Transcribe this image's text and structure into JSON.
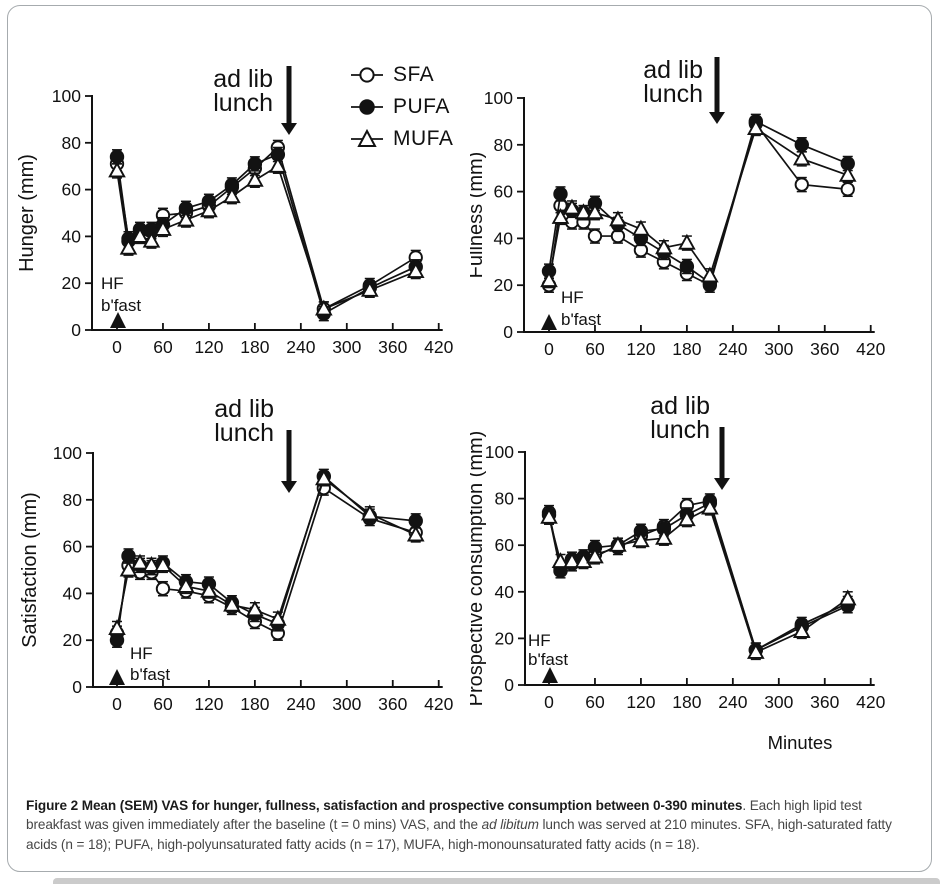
{
  "figure": {
    "caption": {
      "bold": "Figure 2 Mean (SEM) VAS for hunger, fullness, satisfaction and prospective consumption between 0-390 minutes",
      "text_1": ". Each high lipid test breakfast was given immediately after the baseline (t = 0 mins) VAS, and the ",
      "italic": "ad libitum",
      "text_2": " lunch was served at 210 minutes. SFA, high-saturated fatty acids (n = 18); PUFA, high-polyunsaturated fatty acids (n = 17), MUFA, high-monounsaturated fatty acids (n = 18)."
    },
    "x_axis_label": "Minutes"
  },
  "legend": {
    "items": [
      {
        "label": "SFA",
        "marker": "open-circle"
      },
      {
        "label": "PUFA",
        "marker": "filled-circle"
      },
      {
        "label": "MUFA",
        "marker": "open-triangle"
      }
    ]
  },
  "annotations": {
    "lunch_arrow_lines": [
      "ad lib",
      "lunch"
    ],
    "breakfast_lines": [
      "HF",
      "b'fast"
    ],
    "lunch_arrow_at_min": 210,
    "breakfast_at_min": 0
  },
  "colors": {
    "ink": "#121212",
    "caption_text": "#464646",
    "caption_bold": "#1b1b1b",
    "box_border": "#a6abae",
    "footer_bar": "#cbcbcb"
  },
  "chart_data": [
    {
      "type": "line",
      "name": "hunger",
      "ylabel": "Hunger (mm)",
      "x_minutes": [
        0,
        15,
        30,
        45,
        60,
        90,
        120,
        150,
        180,
        210,
        270,
        330,
        390
      ],
      "series": [
        {
          "name": "SFA",
          "marker": "open-circle",
          "values": [
            71,
            39,
            42,
            43,
            49,
            50,
            53,
            61,
            69,
            78,
            9,
            19,
            31
          ]
        },
        {
          "name": "PUFA",
          "marker": "filled-circle",
          "values": [
            74,
            38,
            43,
            42,
            45,
            52,
            55,
            62,
            71,
            75,
            7,
            18,
            27
          ]
        },
        {
          "name": "MUFA",
          "marker": "open-triangle",
          "values": [
            68,
            35,
            40,
            38,
            43,
            47,
            51,
            57,
            64,
            70,
            9,
            17,
            25
          ]
        }
      ],
      "sem_approx": 3,
      "x_ticks": [
        0,
        60,
        120,
        180,
        240,
        300,
        360,
        420
      ],
      "y_ticks": [
        0,
        20,
        40,
        60,
        80,
        100
      ],
      "xlim": [
        0,
        420
      ],
      "ylim": [
        0,
        100
      ]
    },
    {
      "type": "line",
      "name": "fullness",
      "ylabel": "Fullness (mm)",
      "x_minutes": [
        0,
        15,
        30,
        45,
        60,
        90,
        120,
        150,
        180,
        210,
        270,
        330,
        390
      ],
      "series": [
        {
          "name": "SFA",
          "marker": "open-circle",
          "values": [
            20,
            54,
            47,
            47,
            41,
            41,
            35,
            30,
            25,
            20,
            89,
            63,
            61
          ]
        },
        {
          "name": "PUFA",
          "marker": "filled-circle",
          "values": [
            26,
            59,
            52,
            51,
            55,
            46,
            40,
            34,
            28,
            21,
            90,
            80,
            72
          ]
        },
        {
          "name": "MUFA",
          "marker": "open-triangle",
          "values": [
            22,
            49,
            53,
            51,
            51,
            48,
            44,
            36,
            38,
            24,
            87,
            74,
            67
          ]
        }
      ],
      "sem_approx": 3,
      "x_ticks": [
        0,
        60,
        120,
        180,
        240,
        300,
        360,
        420
      ],
      "y_ticks": [
        0,
        20,
        40,
        60,
        80,
        100
      ],
      "xlim": [
        0,
        420
      ],
      "ylim": [
        0,
        100
      ]
    },
    {
      "type": "line",
      "name": "satisfaction",
      "ylabel": "Satisfaction (mm)",
      "x_minutes": [
        0,
        15,
        30,
        45,
        60,
        90,
        120,
        150,
        180,
        210,
        270,
        330,
        390
      ],
      "series": [
        {
          "name": "SFA",
          "marker": "open-circle",
          "values": [
            23,
            52,
            49,
            49,
            42,
            41,
            39,
            34,
            28,
            23,
            85,
            72,
            66
          ]
        },
        {
          "name": "PUFA",
          "marker": "filled-circle",
          "values": [
            20,
            56,
            52,
            51,
            53,
            45,
            44,
            36,
            31,
            27,
            90,
            73,
            71
          ]
        },
        {
          "name": "MUFA",
          "marker": "open-triangle",
          "values": [
            25,
            50,
            53,
            52,
            52,
            43,
            41,
            35,
            33,
            29,
            89,
            74,
            65
          ]
        }
      ],
      "sem_approx": 3,
      "x_ticks": [
        0,
        60,
        120,
        180,
        240,
        300,
        360,
        420
      ],
      "y_ticks": [
        0,
        20,
        40,
        60,
        80,
        100
      ],
      "xlim": [
        0,
        420
      ],
      "ylim": [
        0,
        100
      ]
    },
    {
      "type": "line",
      "name": "prospective-consumption",
      "ylabel": "Prospective consumption (mm)",
      "x_minutes": [
        0,
        15,
        30,
        45,
        60,
        90,
        120,
        150,
        180,
        210,
        270,
        330,
        390
      ],
      "series": [
        {
          "name": "SFA",
          "marker": "open-circle",
          "values": [
            74,
            50,
            52,
            54,
            56,
            59,
            64,
            68,
            77,
            79,
            15,
            26,
            35
          ]
        },
        {
          "name": "PUFA",
          "marker": "filled-circle",
          "values": [
            73,
            49,
            54,
            55,
            59,
            60,
            66,
            67,
            73,
            78,
            15,
            25,
            34
          ]
        },
        {
          "name": "MUFA",
          "marker": "open-triangle",
          "values": [
            72,
            53,
            53,
            53,
            55,
            60,
            62,
            63,
            71,
            76,
            14,
            23,
            37
          ]
        }
      ],
      "sem_approx": 3,
      "x_ticks": [
        0,
        60,
        120,
        180,
        240,
        300,
        360,
        420
      ],
      "y_ticks": [
        0,
        20,
        40,
        60,
        80,
        100
      ],
      "xlim": [
        0,
        420
      ],
      "ylim": [
        0,
        100
      ]
    }
  ]
}
